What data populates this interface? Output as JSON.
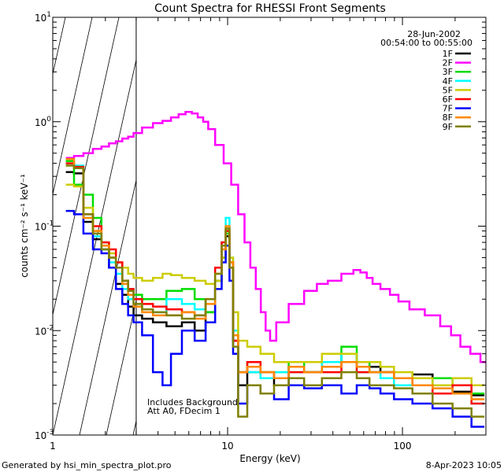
{
  "chart_data": {
    "type": "line",
    "title": "Count Spectra for RHESSI Front Segments",
    "xlabel": "Energy (keV)",
    "ylabel": "counts cm⁻² s⁻¹ keV⁻¹",
    "xscale": "log",
    "yscale": "log",
    "xlim": [
      1,
      300
    ],
    "ylim": [
      0.001,
      10
    ],
    "x_major_ticks": [
      {
        "value": 1,
        "label": "1"
      },
      {
        "value": 10,
        "label": "10"
      },
      {
        "value": 100,
        "label": "100"
      }
    ],
    "y_major_ticks": [
      {
        "value": 0.001,
        "base": "10",
        "exp": "-3"
      },
      {
        "value": 0.01,
        "base": "10",
        "exp": "-2"
      },
      {
        "value": 0.1,
        "base": "10",
        "exp": "-1"
      },
      {
        "value": 1,
        "base": "10",
        "exp": "0"
      },
      {
        "value": 10,
        "base": "10",
        "exp": "1"
      }
    ],
    "hatched_region": {
      "from": 1,
      "to": 3
    },
    "date": "28-Jun-2002",
    "time_range": "00:54:00 to 00:55:00",
    "annotations": [
      "Includes Background",
      "Att A0, FDecim 1"
    ],
    "footer_left": "Generated by hsi_min_spectra_plot.pro",
    "footer_right": "8-Apr-2023 10:05",
    "series": [
      {
        "name": "1F",
        "color": "#000000",
        "x": [
          1.25,
          1.4,
          1.6,
          1.8,
          2.0,
          2.2,
          2.4,
          2.6,
          2.8,
          3.0,
          3.5,
          4.0,
          5.0,
          6.0,
          7.0,
          8.0,
          9.0,
          9.5,
          10.0,
          10.5,
          11.0,
          12.0,
          14.0,
          17.0,
          20.0,
          25.0,
          30.0,
          40.0,
          50.0,
          60.0,
          70.0,
          80.0,
          100.0,
          130.0,
          170.0,
          220.0,
          280.0
        ],
        "values": [
          0.33,
          0.32,
          0.11,
          0.075,
          0.06,
          0.04,
          0.028,
          0.022,
          0.017,
          0.014,
          0.013,
          0.012,
          0.011,
          0.012,
          0.01,
          0.015,
          0.03,
          0.05,
          0.08,
          0.04,
          0.008,
          0.003,
          0.004,
          0.0035,
          0.003,
          0.0045,
          0.004,
          0.005,
          0.006,
          0.005,
          0.0045,
          0.004,
          0.0035,
          0.0038,
          0.003,
          0.0026,
          0.0024
        ]
      },
      {
        "name": "2F",
        "color": "#ff00ff",
        "x": [
          1.25,
          1.4,
          1.6,
          1.8,
          2.0,
          2.2,
          2.4,
          2.6,
          2.8,
          3.0,
          3.5,
          4.0,
          4.5,
          5.0,
          5.5,
          6.0,
          6.5,
          7.0,
          7.5,
          8.0,
          9.0,
          10.0,
          11.0,
          12.0,
          13.0,
          14.0,
          15.0,
          16.0,
          17.0,
          18.0,
          20.0,
          25.0,
          30.0,
          35.0,
          40.0,
          50.0,
          55.0,
          60.0,
          65.0,
          70.0,
          80.0,
          90.0,
          100.0,
          120.0,
          150.0,
          180.0,
          200.0,
          230.0,
          260.0,
          300.0
        ],
        "values": [
          0.45,
          0.47,
          0.5,
          0.55,
          0.58,
          0.62,
          0.65,
          0.69,
          0.72,
          0.78,
          0.88,
          0.97,
          1.02,
          1.1,
          1.18,
          1.24,
          1.2,
          1.1,
          1.0,
          0.85,
          0.6,
          0.4,
          0.25,
          0.13,
          0.07,
          0.04,
          0.025,
          0.015,
          0.01,
          0.008,
          0.012,
          0.018,
          0.024,
          0.028,
          0.03,
          0.035,
          0.038,
          0.036,
          0.032,
          0.028,
          0.025,
          0.022,
          0.019,
          0.016,
          0.014,
          0.011,
          0.009,
          0.007,
          0.006,
          0.005
        ]
      },
      {
        "name": "3F",
        "color": "#00dd00",
        "x": [
          1.25,
          1.4,
          1.6,
          1.8,
          2.0,
          2.2,
          2.4,
          2.6,
          2.8,
          3.0,
          3.5,
          4.0,
          5.0,
          6.0,
          7.0,
          8.0,
          9.0,
          9.5,
          10.0,
          10.5,
          11.0,
          12.0,
          14.0,
          17.0,
          20.0,
          25.0,
          30.0,
          40.0,
          50.0,
          60.0,
          70.0,
          80.0,
          100.0,
          130.0,
          170.0,
          220.0,
          280.0
        ],
        "values": [
          0.42,
          0.25,
          0.2,
          0.12,
          0.07,
          0.05,
          0.04,
          0.03,
          0.025,
          0.022,
          0.02,
          0.02,
          0.024,
          0.025,
          0.02,
          0.015,
          0.03,
          0.05,
          0.085,
          0.04,
          0.01,
          0.004,
          0.005,
          0.004,
          0.004,
          0.005,
          0.004,
          0.005,
          0.007,
          0.005,
          0.004,
          0.004,
          0.0035,
          0.003,
          0.0035,
          0.003,
          0.0025
        ]
      },
      {
        "name": "4F",
        "color": "#00ffff",
        "x": [
          1.25,
          1.4,
          1.6,
          1.8,
          2.0,
          2.2,
          2.4,
          2.6,
          2.8,
          3.0,
          3.5,
          4.0,
          5.0,
          6.0,
          7.0,
          8.0,
          9.0,
          9.5,
          10.0,
          10.5,
          11.0,
          12.0,
          14.0,
          17.0,
          20.0,
          25.0,
          30.0,
          40.0,
          50.0,
          60.0,
          70.0,
          80.0,
          100.0,
          130.0,
          170.0,
          220.0,
          280.0
        ],
        "values": [
          0.4,
          0.38,
          0.12,
          0.08,
          0.06,
          0.045,
          0.035,
          0.025,
          0.02,
          0.018,
          0.016,
          0.015,
          0.02,
          0.018,
          0.016,
          0.02,
          0.04,
          0.07,
          0.12,
          0.05,
          0.01,
          0.004,
          0.004,
          0.0035,
          0.004,
          0.004,
          0.004,
          0.005,
          0.006,
          0.004,
          0.004,
          0.0035,
          0.003,
          0.003,
          0.003,
          0.0025,
          0.002
        ]
      },
      {
        "name": "5F",
        "color": "#cccc00",
        "x": [
          1.25,
          1.4,
          1.6,
          1.8,
          2.0,
          2.2,
          2.4,
          2.6,
          2.8,
          3.0,
          3.5,
          4.0,
          4.5,
          5.0,
          6.0,
          7.0,
          8.0,
          9.0,
          9.5,
          10.0,
          10.5,
          11.0,
          12.0,
          14.0,
          17.0,
          20.0,
          25.0,
          30.0,
          40.0,
          50.0,
          60.0,
          70.0,
          80.0,
          100.0,
          130.0,
          170.0,
          220.0,
          280.0
        ],
        "values": [
          0.25,
          0.24,
          0.15,
          0.09,
          0.065,
          0.055,
          0.045,
          0.04,
          0.035,
          0.032,
          0.03,
          0.032,
          0.035,
          0.034,
          0.032,
          0.03,
          0.028,
          0.03,
          0.05,
          0.09,
          0.05,
          0.015,
          0.008,
          0.007,
          0.006,
          0.005,
          0.005,
          0.005,
          0.006,
          0.006,
          0.005,
          0.005,
          0.0045,
          0.004,
          0.0035,
          0.003,
          0.0035,
          0.003
        ]
      },
      {
        "name": "6F",
        "color": "#ff0000",
        "x": [
          1.25,
          1.4,
          1.6,
          1.8,
          2.0,
          2.2,
          2.4,
          2.6,
          2.8,
          3.0,
          3.5,
          4.0,
          5.0,
          6.0,
          7.0,
          8.0,
          9.0,
          9.5,
          10.0,
          10.5,
          11.0,
          12.0,
          14.0,
          17.0,
          20.0,
          25.0,
          30.0,
          40.0,
          50.0,
          60.0,
          70.0,
          80.0,
          100.0,
          130.0,
          170.0,
          220.0,
          280.0
        ],
        "values": [
          0.4,
          0.37,
          0.13,
          0.1,
          0.07,
          0.06,
          0.045,
          0.03,
          0.025,
          0.02,
          0.018,
          0.017,
          0.016,
          0.015,
          0.014,
          0.02,
          0.04,
          0.07,
          0.09,
          0.045,
          0.008,
          0.004,
          0.005,
          0.004,
          0.0035,
          0.004,
          0.004,
          0.004,
          0.005,
          0.004,
          0.004,
          0.004,
          0.0035,
          0.003,
          0.0025,
          0.003,
          0.002
        ]
      },
      {
        "name": "7F",
        "color": "#0000ff",
        "x": [
          1.25,
          1.4,
          1.6,
          1.8,
          2.0,
          2.2,
          2.4,
          2.6,
          2.8,
          3.0,
          3.5,
          4.0,
          4.5,
          5.0,
          6.0,
          7.0,
          8.0,
          9.0,
          9.5,
          10.0,
          10.5,
          11.0,
          12.0,
          14.0,
          17.0,
          20.0,
          25.0,
          30.0,
          40.0,
          50.0,
          60.0,
          70.0,
          80.0,
          100.0,
          130.0,
          170.0,
          220.0,
          280.0
        ],
        "values": [
          0.14,
          0.13,
          0.085,
          0.06,
          0.055,
          0.04,
          0.025,
          0.018,
          0.014,
          0.012,
          0.009,
          0.004,
          0.003,
          0.006,
          0.01,
          0.008,
          0.012,
          0.025,
          0.045,
          0.065,
          0.03,
          0.006,
          0.002,
          0.003,
          0.0025,
          0.0022,
          0.003,
          0.0028,
          0.003,
          0.0025,
          0.003,
          0.0028,
          0.0025,
          0.0022,
          0.002,
          0.0018,
          0.0015,
          0.0012
        ]
      },
      {
        "name": "8F",
        "color": "#ff8800",
        "x": [
          1.25,
          1.4,
          1.6,
          1.8,
          2.0,
          2.2,
          2.4,
          2.6,
          2.8,
          3.0,
          3.5,
          4.0,
          5.0,
          6.0,
          7.0,
          8.0,
          9.0,
          9.5,
          10.0,
          10.5,
          11.0,
          12.0,
          14.0,
          17.0,
          20.0,
          25.0,
          30.0,
          40.0,
          50.0,
          60.0,
          70.0,
          80.0,
          100.0,
          130.0,
          170.0,
          220.0,
          280.0
        ],
        "values": [
          0.44,
          0.36,
          0.12,
          0.09,
          0.065,
          0.05,
          0.04,
          0.028,
          0.022,
          0.017,
          0.015,
          0.014,
          0.014,
          0.015,
          0.013,
          0.018,
          0.035,
          0.06,
          0.1,
          0.045,
          0.009,
          0.004,
          0.0045,
          0.004,
          0.0035,
          0.0045,
          0.004,
          0.0045,
          0.005,
          0.0045,
          0.004,
          0.004,
          0.0035,
          0.003,
          0.0028,
          0.0025,
          0.0022
        ]
      },
      {
        "name": "9F",
        "color": "#808000",
        "x": [
          1.25,
          1.4,
          1.6,
          1.8,
          2.0,
          2.2,
          2.4,
          2.6,
          2.8,
          3.0,
          3.5,
          4.0,
          5.0,
          6.0,
          7.0,
          8.0,
          9.0,
          9.5,
          10.0,
          10.5,
          11.0,
          12.0,
          14.0,
          17.0,
          20.0,
          25.0,
          30.0,
          40.0,
          50.0,
          60.0,
          70.0,
          80.0,
          100.0,
          130.0,
          170.0,
          220.0,
          280.0
        ],
        "values": [
          0.38,
          0.36,
          0.13,
          0.085,
          0.06,
          0.05,
          0.04,
          0.03,
          0.024,
          0.018,
          0.016,
          0.015,
          0.014,
          0.013,
          0.014,
          0.02,
          0.035,
          0.065,
          0.095,
          0.04,
          0.007,
          0.0015,
          0.003,
          0.0025,
          0.003,
          0.0035,
          0.003,
          0.0035,
          0.004,
          0.0035,
          0.003,
          0.003,
          0.0028,
          0.0025,
          0.002,
          0.0018,
          0.0015
        ]
      }
    ]
  }
}
